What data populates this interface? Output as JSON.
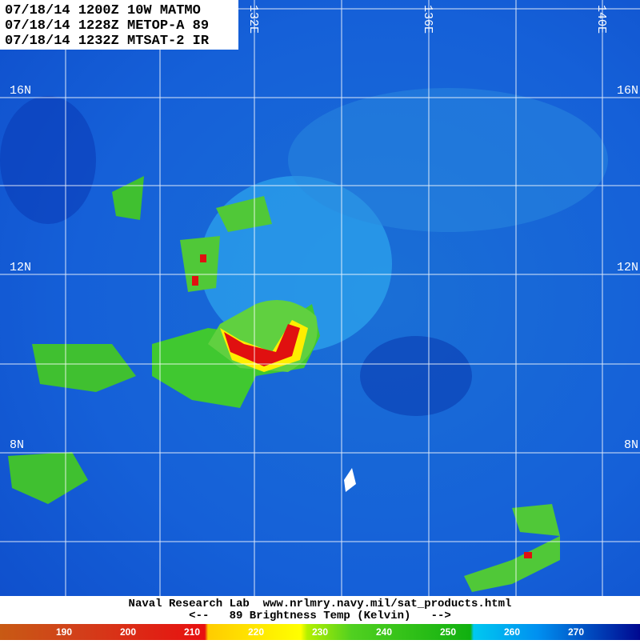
{
  "header": {
    "lines": [
      "07/18/14 1200Z 10W MATMO",
      "07/18/14 1228Z METOP-A 89",
      "07/18/14 1232Z MTSAT-2 IR"
    ]
  },
  "grid": {
    "latitudes": [
      "16N",
      "12N",
      "8N"
    ],
    "longitudes": [
      "132E",
      "136E",
      "140E"
    ]
  },
  "footer": {
    "credit": "Naval Research Lab  www.nrlmry.navy.mil/sat_products.html",
    "legend": "<--   89 Brightness Temp (Kelvin)   -->"
  },
  "colorbar": {
    "labels": [
      190,
      200,
      210,
      220,
      230,
      240,
      250,
      260,
      270
    ]
  }
}
